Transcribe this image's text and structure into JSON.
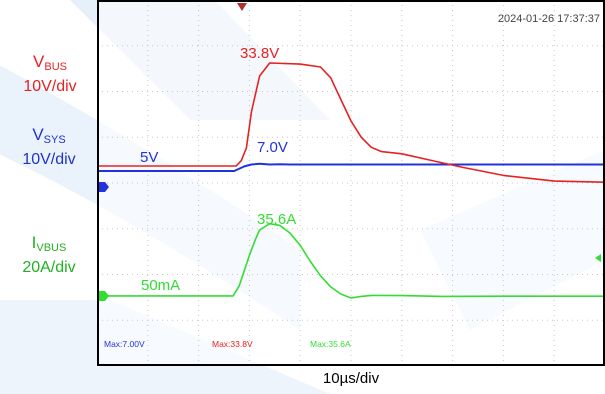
{
  "labels": {
    "vbus": {
      "name": "V",
      "sub": "BUS",
      "scale": "10V/div"
    },
    "vsys": {
      "name": "V",
      "sub": "SYS",
      "scale": "10V/div"
    },
    "ibus": {
      "name": "I",
      "sub": "VBUS",
      "scale": "20A/div"
    }
  },
  "x_scale": "10µs/div",
  "timestamp": "2024-01-26 17:37:37",
  "colors": {
    "vbus": "#e52222",
    "vsys": "#2233dd",
    "ibus": "#33dd33",
    "screen_bg": "#ffffff",
    "grid": "#c8c8c8"
  },
  "chart_data": {
    "type": "line",
    "title": "",
    "xlabel": "10µs/div",
    "grid": true,
    "time_unit": "µs",
    "xlim": [
      0,
      50
    ],
    "annotations": {
      "vsys_low": "5V",
      "vsys_peak": "7.0V",
      "vbus_peak": "33.8V",
      "ibus_peak": "35.6A",
      "ibus_low": "50mA"
    },
    "measurements": [
      {
        "label": "Max:7.00V",
        "color": "#2233dd"
      },
      {
        "label": "Max:33.8V",
        "color": "#e52222"
      },
      {
        "label": "Max:35.6A",
        "color": "#33dd33"
      }
    ],
    "series": [
      {
        "name": "VBUS",
        "unit": "V",
        "x": [
          0,
          13.7,
          14.2,
          14.7,
          15.2,
          16.0,
          17.0,
          20.0,
          22.0,
          23.0,
          24.0,
          25.0,
          26.0,
          27.0,
          28.0,
          30.0,
          33.0,
          36.0,
          40.0,
          45.0,
          50.0
        ],
        "y": [
          5.0,
          5.0,
          6.5,
          10.0,
          20.0,
          30.0,
          33.6,
          33.3,
          32.5,
          29.5,
          23.5,
          17.5,
          13.0,
          10.2,
          9.0,
          8.4,
          6.5,
          4.6,
          2.4,
          0.8,
          0.5
        ]
      },
      {
        "name": "VSYS",
        "unit": "V",
        "x": [
          0,
          13.5,
          14.5,
          15.2,
          16.0,
          17.0,
          18.0,
          19.0,
          20.0,
          50.0
        ],
        "y": [
          5.0,
          5.0,
          6.4,
          7.0,
          7.2,
          7.0,
          7.1,
          7.0,
          7.0,
          7.0
        ]
      },
      {
        "name": "IBUS",
        "unit": "A",
        "x": [
          0,
          13.4,
          14.0,
          15.0,
          15.6,
          16.0,
          17.0,
          18.0,
          19.0,
          20.0,
          21.0,
          22.0,
          23.0,
          24.0,
          25.0,
          26.0,
          27.0,
          30.0,
          34.0,
          40.0,
          50.0
        ],
        "y": [
          0.05,
          0.05,
          5.0,
          20.0,
          28.0,
          32.5,
          35.6,
          34.8,
          31.0,
          25.0,
          17.0,
          10.0,
          4.5,
          1.0,
          -1.0,
          -0.2,
          0.3,
          0.2,
          -0.2,
          -0.1,
          -0.1
        ]
      }
    ]
  }
}
